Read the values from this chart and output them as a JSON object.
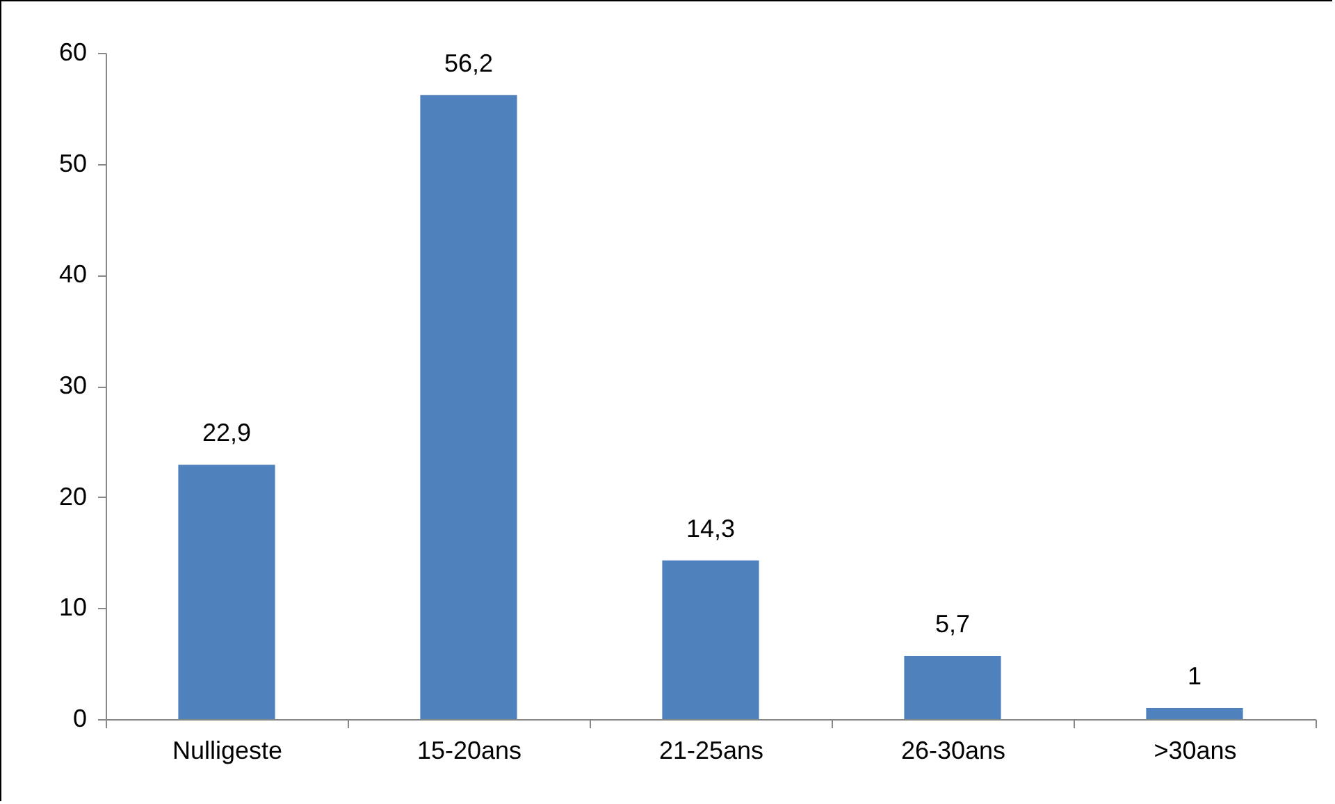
{
  "chart_data": {
    "type": "bar",
    "categories": [
      "Nulligeste",
      "15-20ans",
      "21-25ans",
      "26-30ans",
      ">30ans"
    ],
    "values": [
      22.9,
      56.2,
      14.3,
      5.7,
      1
    ],
    "value_labels": [
      "22,9",
      "56,2",
      "14,3",
      "5,7",
      "1"
    ],
    "color": "#4f81bd",
    "ylim": [
      0,
      60
    ],
    "yticks": [
      0,
      10,
      20,
      30,
      40,
      50,
      60
    ],
    "grid": false
  }
}
